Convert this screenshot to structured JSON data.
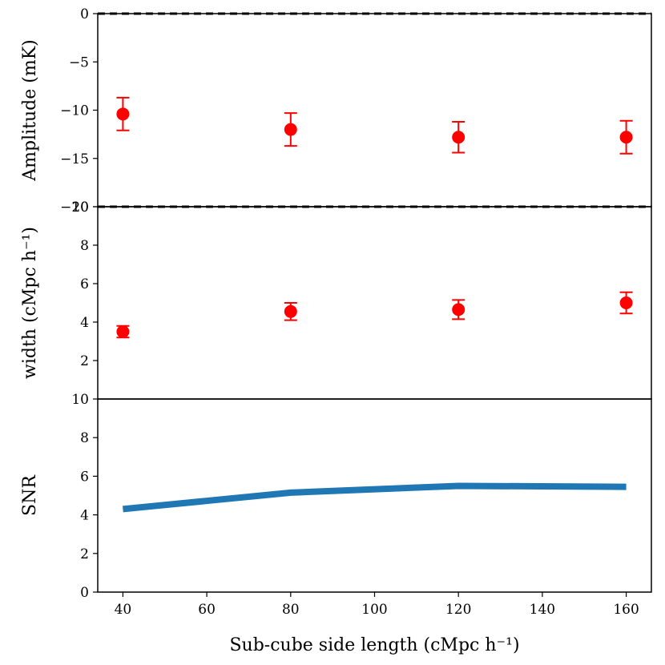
{
  "chart_data": {
    "type": "multi-panel",
    "x_shared": {
      "label": "Sub-cube side length (cMpc h⁻¹)",
      "xlim": [
        34,
        166
      ],
      "ticks": [
        40,
        60,
        80,
        100,
        120,
        140,
        160
      ]
    },
    "panels": [
      {
        "type": "scatter",
        "ylabel": "Amplitude (mK)",
        "ylim": [
          -20,
          0
        ],
        "yticks": [
          0,
          -5,
          -10,
          -15,
          -20
        ],
        "ytick_labels": [
          "0",
          "−5",
          "−10",
          "−15",
          "−20"
        ],
        "reference_line": 0,
        "marker_color": "#ff0000",
        "x": [
          40,
          80,
          120,
          160
        ],
        "y": [
          -10.4,
          -12.0,
          -12.8,
          -12.8
        ],
        "yerr": [
          1.7,
          1.7,
          1.6,
          1.7
        ]
      },
      {
        "type": "scatter",
        "ylabel": "width (cMpc h⁻¹)",
        "ylim": [
          0,
          10
        ],
        "yticks": [
          2,
          4,
          6,
          8,
          10
        ],
        "ytick_labels": [
          "2",
          "4",
          "6",
          "8",
          "10"
        ],
        "reference_line": 10,
        "marker_color": "#ff0000",
        "x": [
          40,
          80,
          120,
          160
        ],
        "y": [
          3.5,
          4.55,
          4.65,
          5.0
        ],
        "yerr": [
          0.3,
          0.45,
          0.5,
          0.55
        ]
      },
      {
        "type": "line",
        "ylabel": "SNR",
        "ylim": [
          0,
          10
        ],
        "yticks": [
          0,
          2,
          4,
          6,
          8,
          10
        ],
        "ytick_labels": [
          "0",
          "2",
          "4",
          "6",
          "8",
          "10"
        ],
        "line_color": "#1f77b4",
        "x": [
          40,
          80,
          120,
          160
        ],
        "y": [
          4.3,
          5.15,
          5.5,
          5.45
        ]
      }
    ]
  }
}
